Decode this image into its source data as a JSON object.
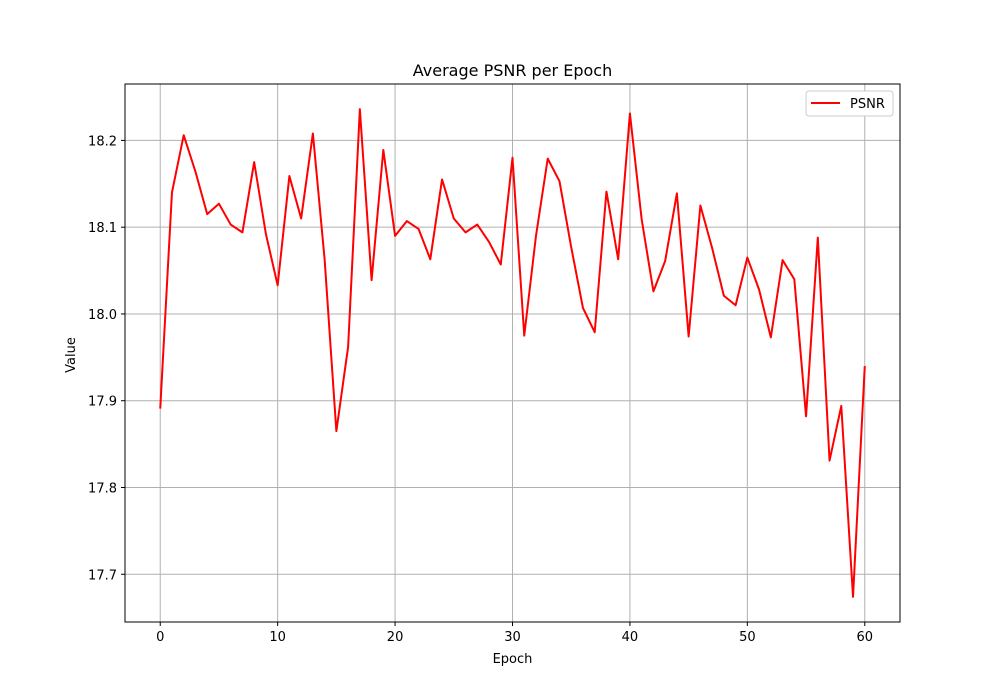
{
  "chart_data": {
    "type": "line",
    "title": "Average PSNR per Epoch",
    "xlabel": "Epoch",
    "ylabel": "Value",
    "xlim": [
      -3,
      63
    ],
    "ylim": [
      17.645,
      18.265
    ],
    "xticks": [
      0,
      10,
      20,
      30,
      40,
      50,
      60
    ],
    "yticks": [
      17.7,
      17.8,
      17.9,
      18.0,
      18.1,
      18.2
    ],
    "ytick_labels": [
      "17.7",
      "17.8",
      "17.9",
      "18.0",
      "18.1",
      "18.2"
    ],
    "grid": true,
    "legend_position": "top-right",
    "series": [
      {
        "name": "PSNR",
        "color": "#ff0000",
        "x": [
          0,
          1,
          2,
          3,
          4,
          5,
          6,
          7,
          8,
          9,
          10,
          11,
          12,
          13,
          14,
          15,
          16,
          17,
          18,
          19,
          20,
          21,
          22,
          23,
          24,
          25,
          26,
          27,
          28,
          29,
          30,
          31,
          32,
          33,
          34,
          35,
          36,
          37,
          38,
          39,
          40,
          41,
          42,
          43,
          44,
          45,
          46,
          47,
          48,
          49,
          50,
          51,
          52,
          53,
          54,
          55,
          56,
          57,
          58,
          59,
          60
        ],
        "values": [
          17.891,
          18.14,
          18.206,
          18.164,
          18.115,
          18.127,
          18.103,
          18.094,
          18.175,
          18.092,
          18.033,
          18.159,
          18.11,
          18.208,
          18.063,
          17.865,
          17.962,
          18.236,
          18.039,
          18.189,
          18.09,
          18.107,
          18.098,
          18.063,
          18.155,
          18.11,
          18.094,
          18.103,
          18.083,
          18.057,
          18.18,
          17.975,
          18.09,
          18.179,
          18.153,
          18.077,
          18.007,
          17.979,
          18.141,
          18.063,
          18.231,
          18.109,
          18.026,
          18.061,
          18.139,
          17.974,
          18.125,
          18.076,
          18.021,
          18.01,
          18.065,
          18.028,
          17.973,
          18.062,
          18.04,
          17.882,
          18.088,
          17.831,
          17.894,
          17.674,
          17.94
        ]
      }
    ]
  }
}
